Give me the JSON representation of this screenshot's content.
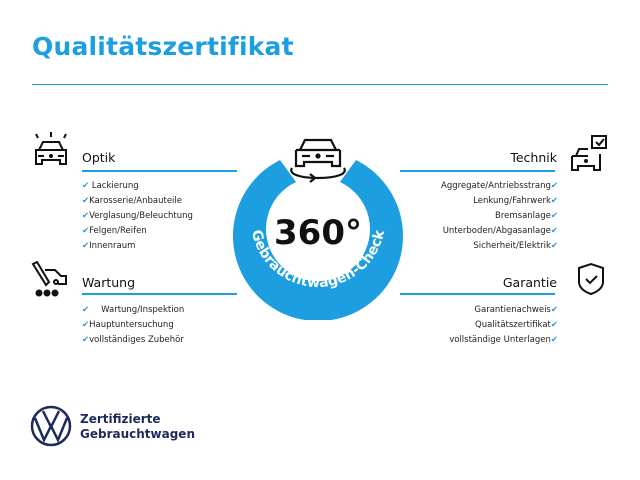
{
  "title": "Qualitätszertifikat",
  "center": {
    "big": "360°",
    "arc_text": "Gebrauchtwagen-Check",
    "icon": "car-360-icon"
  },
  "sections": {
    "optik": {
      "title": "Optik",
      "icon": "car-lights-icon",
      "items": [
        "Lackierung",
        "Karosserie/Anbauteile",
        "Verglasung/Beleuchtung",
        "Felgen/Reifen",
        "Innenraum"
      ]
    },
    "wartung": {
      "title": "Wartung",
      "icon": "service-tools-icon",
      "items": [
        "Wartung/Inspektion",
        "Hauptuntersuchung",
        "vollständiges Zubehör"
      ]
    },
    "technik": {
      "title": "Technik",
      "icon": "car-checkbox-icon",
      "items": [
        "Aggregate/Antriebsstrang",
        "Lenkung/Fahrwerk",
        "Bremsanlage",
        "Unterboden/Abgasanlage",
        "Sicherheit/Elektrik"
      ]
    },
    "garantie": {
      "title": "Garantie",
      "icon": "shield-check-icon",
      "items": [
        "Garantienachweis",
        "Qualitätszertifikat",
        "vollständige Unterlagen"
      ]
    }
  },
  "check_mark": "✔",
  "brand": {
    "line1": "Zertifizierte",
    "line2": "Gebrauchtwagen",
    "logo": "vw-logo"
  },
  "colors": {
    "accent": "#1c9ee0",
    "brand": "#1e2a5a"
  }
}
